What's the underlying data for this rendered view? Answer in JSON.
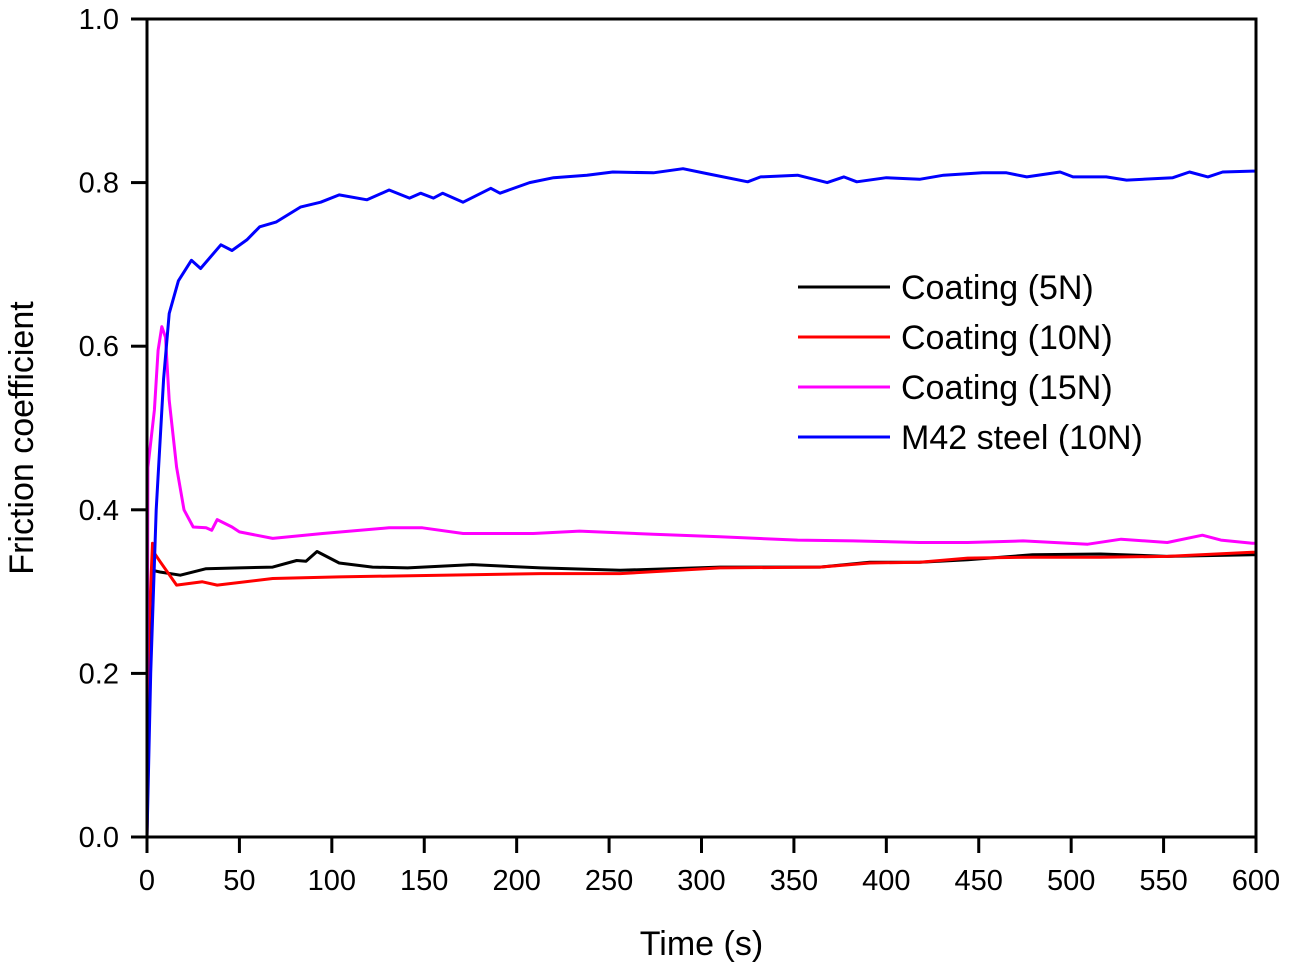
{
  "chart_data": {
    "type": "line",
    "title": "",
    "xlabel": "Time (s)",
    "ylabel": "Friction coefficient",
    "xlim": [
      0,
      600
    ],
    "ylim": [
      0,
      1.0
    ],
    "xticks": [
      0,
      50,
      100,
      150,
      200,
      250,
      300,
      350,
      400,
      450,
      500,
      550,
      600
    ],
    "xtick_labels": [
      "0",
      "50",
      "100",
      "150",
      "200",
      "250",
      "300",
      "350",
      "400",
      "450",
      "500",
      "550",
      "600"
    ],
    "yticks": [
      0.0,
      0.2,
      0.4,
      0.6,
      0.8,
      1.0
    ],
    "ytick_labels": [
      "0.0",
      "0.2",
      "0.4",
      "0.6",
      "0.8",
      "1.0"
    ],
    "grid": false,
    "legend_position": "center-right",
    "series": [
      {
        "name": "Coating (5N)",
        "color": "#000000",
        "x": [
          0,
          1,
          3,
          7,
          18,
          32,
          50,
          68,
          81,
          86,
          92,
          104,
          122,
          141,
          176,
          213,
          256,
          310,
          364,
          391,
          418,
          444,
          479,
          516,
          552,
          598,
          600
        ],
        "y": [
          0.0,
          0.2,
          0.326,
          0.324,
          0.32,
          0.328,
          0.329,
          0.33,
          0.338,
          0.337,
          0.349,
          0.335,
          0.33,
          0.329,
          0.333,
          0.329,
          0.326,
          0.33,
          0.33,
          0.336,
          0.336,
          0.339,
          0.345,
          0.346,
          0.343,
          0.345,
          0.345
        ]
      },
      {
        "name": "Coating (10N)",
        "color": "#ff0000",
        "x": [
          0,
          1,
          3,
          4,
          7,
          16,
          30,
          38,
          68,
          104,
          159,
          213,
          256,
          310,
          364,
          391,
          418,
          444,
          479,
          516,
          552,
          598,
          600
        ],
        "y": [
          0.0,
          0.25,
          0.359,
          0.347,
          0.337,
          0.308,
          0.312,
          0.308,
          0.316,
          0.318,
          0.32,
          0.322,
          0.322,
          0.329,
          0.33,
          0.335,
          0.336,
          0.341,
          0.342,
          0.342,
          0.343,
          0.348,
          0.348
        ]
      },
      {
        "name": "Coating (15N)",
        "color": "#ff00ff",
        "x": [
          0,
          0.5,
          4,
          6,
          8,
          10,
          12,
          16,
          20,
          25,
          32,
          35,
          38,
          46,
          50,
          68,
          95,
          131,
          149,
          171,
          209,
          234,
          274,
          310,
          352,
          382,
          418,
          444,
          474,
          509,
          527,
          552,
          571,
          581,
          598,
          600
        ],
        "y": [
          0.0,
          0.452,
          0.522,
          0.595,
          0.624,
          0.611,
          0.534,
          0.452,
          0.4,
          0.379,
          0.378,
          0.375,
          0.388,
          0.379,
          0.373,
          0.365,
          0.371,
          0.378,
          0.378,
          0.371,
          0.371,
          0.374,
          0.37,
          0.367,
          0.363,
          0.362,
          0.36,
          0.36,
          0.362,
          0.358,
          0.364,
          0.36,
          0.369,
          0.363,
          0.359,
          0.359
        ]
      },
      {
        "name": "M42 steel (10N)",
        "color": "#0000ff",
        "x": [
          0,
          2,
          5,
          9,
          12,
          17,
          24,
          29,
          40,
          46,
          54,
          61,
          70,
          83,
          94,
          104,
          119,
          131,
          142,
          148,
          155,
          160,
          171,
          186,
          191,
          207,
          220,
          238,
          252,
          274,
          290,
          303,
          325,
          332,
          352,
          368,
          377,
          384,
          400,
          418,
          431,
          452,
          465,
          476,
          494,
          501,
          519,
          530,
          555,
          564,
          574,
          582,
          598,
          600
        ],
        "y": [
          0.0,
          0.2,
          0.4,
          0.56,
          0.64,
          0.68,
          0.705,
          0.695,
          0.724,
          0.717,
          0.73,
          0.746,
          0.752,
          0.77,
          0.776,
          0.785,
          0.779,
          0.791,
          0.781,
          0.787,
          0.781,
          0.787,
          0.776,
          0.793,
          0.787,
          0.8,
          0.806,
          0.809,
          0.813,
          0.812,
          0.817,
          0.811,
          0.801,
          0.807,
          0.809,
          0.8,
          0.807,
          0.801,
          0.806,
          0.804,
          0.809,
          0.812,
          0.812,
          0.807,
          0.813,
          0.807,
          0.807,
          0.803,
          0.806,
          0.813,
          0.807,
          0.813,
          0.814,
          0.814
        ]
      }
    ]
  }
}
